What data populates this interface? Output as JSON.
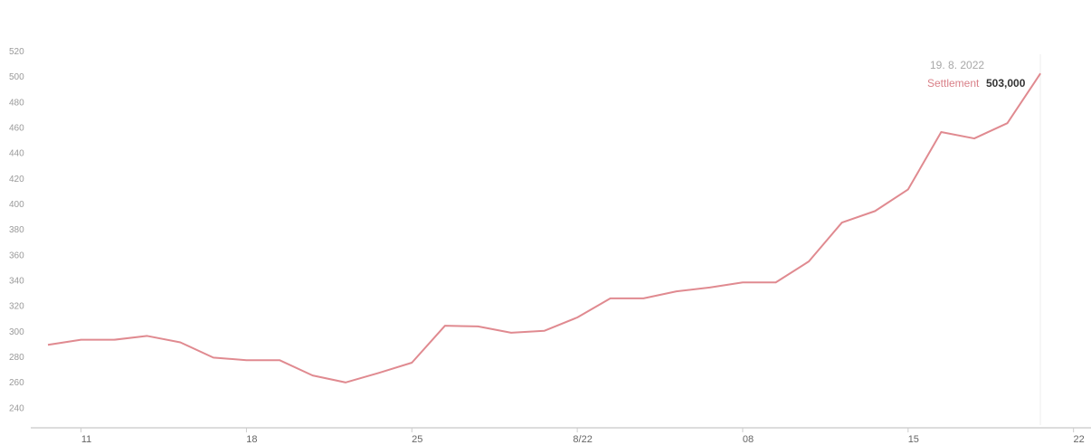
{
  "chart_data": {
    "type": "line",
    "categories": [
      null,
      "11",
      null,
      null,
      null,
      null,
      "18",
      null,
      null,
      null,
      null,
      "25",
      null,
      null,
      null,
      null,
      "8/22",
      null,
      null,
      null,
      null,
      "08",
      null,
      null,
      null,
      null,
      "15",
      null,
      null,
      null,
      null,
      "22"
    ],
    "series": [
      {
        "name": "Settlement",
        "color": "#e08a90",
        "values": [
          290,
          294,
          294,
          297,
          292,
          280,
          278,
          278,
          266,
          260.5,
          268,
          276,
          305,
          304.5,
          299.5,
          301,
          311.5,
          326.5,
          326.5,
          332,
          335,
          339,
          339,
          355.5,
          386,
          395,
          412,
          457,
          452,
          464,
          503,
          null
        ]
      }
    ],
    "ylim": [
      232,
      528
    ],
    "yticks": [
      240,
      260,
      280,
      300,
      320,
      340,
      360,
      380,
      400,
      420,
      440,
      460,
      480,
      500,
      520
    ],
    "tooltip": {
      "date": "19. 8. 2022",
      "label": "Settlement",
      "value": "503,000"
    }
  }
}
